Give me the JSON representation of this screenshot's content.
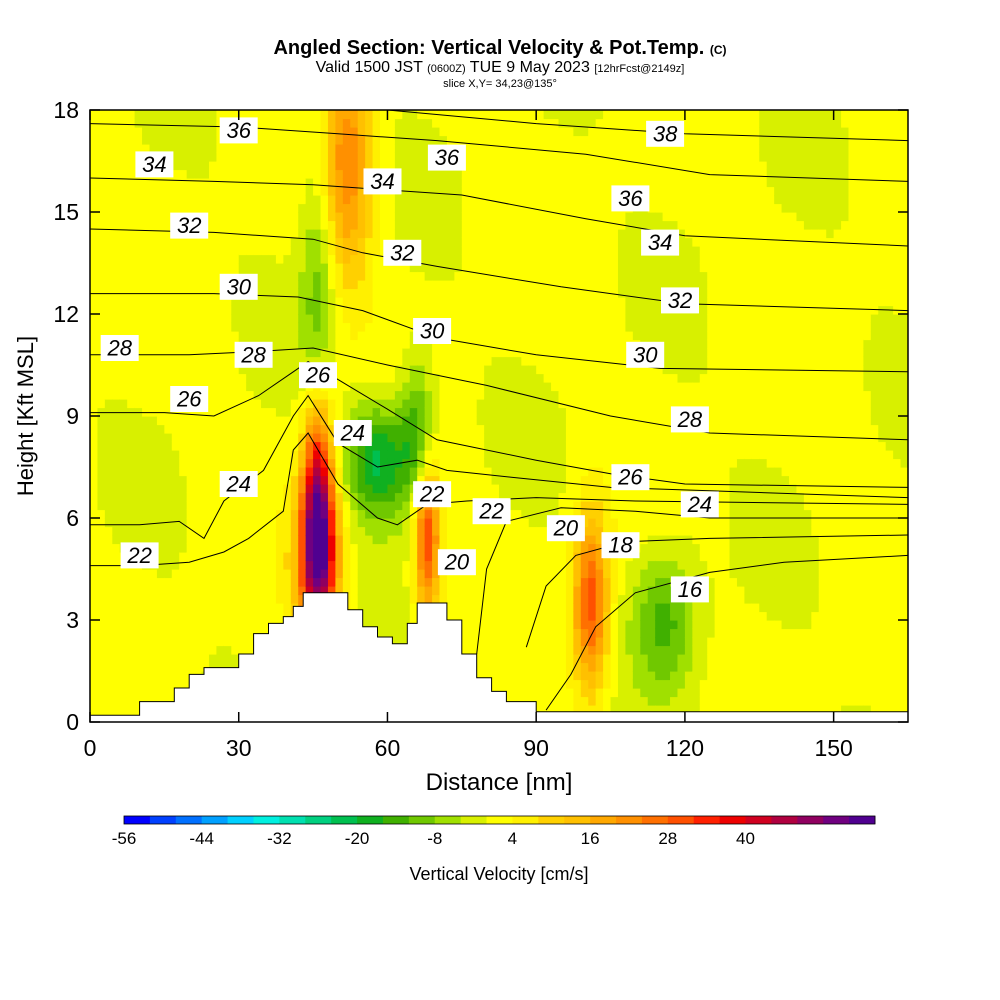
{
  "header": {
    "title": "Angled Section: Vertical Velocity & Pot.Temp.",
    "title_mark": "(C)",
    "valid_main": "Valid 1500 JST",
    "valid_utc": "(0600Z)",
    "valid_date": "TUE 9 May 2023",
    "forecast": "[12hrFcst@2149z]",
    "slice": "slice X,Y= 34,23@135°"
  },
  "chart_data": {
    "type": "heatmap",
    "xlabel": "Distance [nm]",
    "ylabel": "Height [Kft MSL]",
    "xlim": [
      0,
      165
    ],
    "ylim": [
      0,
      18
    ],
    "x_ticks": [
      0,
      30,
      60,
      90,
      120,
      150
    ],
    "y_ticks": [
      0,
      3,
      6,
      9,
      12,
      15,
      18
    ],
    "colorbar": {
      "label": "Vertical Velocity [cm/s]",
      "range": [
        -56,
        52
      ],
      "step": 4,
      "tick_labels": [
        -56,
        -44,
        -32,
        -20,
        -8,
        4,
        16,
        28,
        40
      ],
      "colors": [
        "#0000ff",
        "#0040ff",
        "#0070ff",
        "#00a0ff",
        "#00d0ff",
        "#00f0e0",
        "#00e0b0",
        "#00d080",
        "#00c050",
        "#10b020",
        "#40b000",
        "#70c800",
        "#a0e000",
        "#d8f000",
        "#ffff00",
        "#fff000",
        "#ffd000",
        "#ffc000",
        "#ffa800",
        "#ff9000",
        "#ff7000",
        "#ff5000",
        "#ff2000",
        "#ee0000",
        "#d00020",
        "#b00040",
        "#900060",
        "#700080",
        "#500090"
      ]
    },
    "terrain": [
      [
        0,
        0.2
      ],
      [
        10,
        0.2
      ],
      [
        10,
        0.6
      ],
      [
        17,
        0.6
      ],
      [
        17,
        1.0
      ],
      [
        20,
        1.0
      ],
      [
        20,
        1.4
      ],
      [
        23,
        1.4
      ],
      [
        23,
        1.6
      ],
      [
        30,
        1.6
      ],
      [
        30,
        2.0
      ],
      [
        33,
        2.0
      ],
      [
        33,
        2.6
      ],
      [
        36,
        2.6
      ],
      [
        36,
        2.9
      ],
      [
        39,
        2.9
      ],
      [
        39,
        3.1
      ],
      [
        41,
        3.1
      ],
      [
        41,
        3.4
      ],
      [
        43,
        3.4
      ],
      [
        43,
        3.8
      ],
      [
        52,
        3.8
      ],
      [
        52,
        3.3
      ],
      [
        55,
        3.3
      ],
      [
        55,
        2.8
      ],
      [
        58,
        2.8
      ],
      [
        58,
        2.5
      ],
      [
        61,
        2.5
      ],
      [
        61,
        2.3
      ],
      [
        64,
        2.3
      ],
      [
        64,
        2.9
      ],
      [
        66,
        2.9
      ],
      [
        66,
        3.5
      ],
      [
        72,
        3.5
      ],
      [
        72,
        3.0
      ],
      [
        75,
        3.0
      ],
      [
        75,
        2.0
      ],
      [
        78,
        2.0
      ],
      [
        78,
        1.3
      ],
      [
        81,
        1.3
      ],
      [
        81,
        0.9
      ],
      [
        84,
        0.9
      ],
      [
        84,
        0.6
      ],
      [
        90,
        0.6
      ],
      [
        90,
        0.3
      ],
      [
        165,
        0.3
      ]
    ],
    "theta_lines": [
      {
        "level": 16,
        "points": [
          [
            92,
            0.35
          ],
          [
            97,
            1.4
          ],
          [
            102,
            2.8
          ],
          [
            110,
            3.8
          ],
          [
            125,
            4.4
          ],
          [
            140,
            4.7
          ],
          [
            165,
            4.9
          ]
        ]
      },
      {
        "level": 18,
        "points": [
          [
            88,
            2.2
          ],
          [
            92,
            4.0
          ],
          [
            98,
            4.9
          ],
          [
            108,
            5.3
          ],
          [
            125,
            5.4
          ],
          [
            165,
            5.5
          ]
        ]
      },
      {
        "level": 20,
        "points": [
          [
            78,
            2.0
          ],
          [
            80,
            4.5
          ],
          [
            84,
            5.9
          ],
          [
            95,
            6.3
          ],
          [
            110,
            6.2
          ],
          [
            125,
            6.0
          ],
          [
            165,
            6.0
          ]
        ]
      },
      {
        "level": 22,
        "points": [
          [
            0,
            4.6
          ],
          [
            10,
            4.6
          ],
          [
            20,
            4.7
          ],
          [
            27,
            5.0
          ],
          [
            32,
            5.4
          ],
          [
            39,
            6.2
          ],
          [
            41,
            8.0
          ],
          [
            44,
            8.5
          ],
          [
            50,
            7.0
          ],
          [
            58,
            6.0
          ],
          [
            62,
            5.8
          ],
          [
            68,
            6.4
          ],
          [
            76,
            6.5
          ],
          [
            90,
            6.6
          ],
          [
            110,
            6.5
          ],
          [
            165,
            6.4
          ]
        ]
      },
      {
        "level": 24,
        "points": [
          [
            0,
            5.8
          ],
          [
            10,
            5.8
          ],
          [
            18,
            5.9
          ],
          [
            23,
            5.4
          ],
          [
            27,
            6.5
          ],
          [
            35,
            7.4
          ],
          [
            41,
            9.0
          ],
          [
            44,
            9.6
          ],
          [
            50,
            8.2
          ],
          [
            58,
            7.5
          ],
          [
            66,
            7.7
          ],
          [
            72,
            7.4
          ],
          [
            85,
            7.2
          ],
          [
            105,
            6.9
          ],
          [
            125,
            6.8
          ],
          [
            165,
            6.6
          ]
        ]
      },
      {
        "level": 26,
        "points": [
          [
            0,
            9.1
          ],
          [
            15,
            9.1
          ],
          [
            25,
            9.0
          ],
          [
            34,
            9.6
          ],
          [
            41,
            10.3
          ],
          [
            44,
            10.6
          ],
          [
            52,
            9.9
          ],
          [
            60,
            9.2
          ],
          [
            70,
            8.3
          ],
          [
            90,
            7.7
          ],
          [
            105,
            7.3
          ],
          [
            120,
            7.0
          ],
          [
            165,
            6.9
          ]
        ]
      },
      {
        "level": 28,
        "points": [
          [
            0,
            10.8
          ],
          [
            20,
            10.8
          ],
          [
            34,
            10.9
          ],
          [
            45,
            11.0
          ],
          [
            60,
            10.5
          ],
          [
            80,
            9.9
          ],
          [
            105,
            9.0
          ],
          [
            125,
            8.5
          ],
          [
            165,
            8.3
          ]
        ]
      },
      {
        "level": 30,
        "points": [
          [
            0,
            12.6
          ],
          [
            25,
            12.6
          ],
          [
            42,
            12.5
          ],
          [
            55,
            12.1
          ],
          [
            70,
            11.3
          ],
          [
            90,
            10.8
          ],
          [
            115,
            10.4
          ],
          [
            165,
            10.3
          ]
        ]
      },
      {
        "level": 32,
        "points": [
          [
            0,
            14.5
          ],
          [
            25,
            14.4
          ],
          [
            45,
            14.2
          ],
          [
            55,
            13.8
          ],
          [
            70,
            13.4
          ],
          [
            95,
            12.8
          ],
          [
            120,
            12.3
          ],
          [
            165,
            12.1
          ]
        ]
      },
      {
        "level": 34,
        "points": [
          [
            0,
            16.0
          ],
          [
            25,
            15.9
          ],
          [
            45,
            15.8
          ],
          [
            55,
            15.7
          ],
          [
            75,
            15.5
          ],
          [
            100,
            14.8
          ],
          [
            120,
            14.3
          ],
          [
            165,
            14.0
          ]
        ]
      },
      {
        "level": 36,
        "points": [
          [
            0,
            17.6
          ],
          [
            30,
            17.5
          ],
          [
            50,
            17.3
          ],
          [
            70,
            17.1
          ],
          [
            100,
            16.7
          ],
          [
            125,
            16.1
          ],
          [
            165,
            15.9
          ]
        ]
      },
      {
        "level": 38,
        "points": [
          [
            60,
            18.0
          ],
          [
            90,
            17.6
          ],
          [
            120,
            17.3
          ],
          [
            165,
            17.1
          ]
        ]
      }
    ],
    "theta_labels": [
      {
        "text": "38",
        "x": 116,
        "y": 17.3
      },
      {
        "text": "36",
        "x": 30,
        "y": 17.4
      },
      {
        "text": "36",
        "x": 72,
        "y": 16.6
      },
      {
        "text": "36",
        "x": 109,
        "y": 15.4
      },
      {
        "text": "34",
        "x": 13,
        "y": 16.4
      },
      {
        "text": "34",
        "x": 59,
        "y": 15.9
      },
      {
        "text": "34",
        "x": 115,
        "y": 14.1
      },
      {
        "text": "32",
        "x": 20,
        "y": 14.6
      },
      {
        "text": "32",
        "x": 63,
        "y": 13.8
      },
      {
        "text": "32",
        "x": 119,
        "y": 12.4
      },
      {
        "text": "30",
        "x": 30,
        "y": 12.8
      },
      {
        "text": "30",
        "x": 69,
        "y": 11.5
      },
      {
        "text": "30",
        "x": 112,
        "y": 10.8
      },
      {
        "text": "28",
        "x": 6,
        "y": 11.0
      },
      {
        "text": "28",
        "x": 33,
        "y": 10.8
      },
      {
        "text": "28",
        "x": 121,
        "y": 8.9
      },
      {
        "text": "26",
        "x": 20,
        "y": 9.5
      },
      {
        "text": "26",
        "x": 46,
        "y": 10.2
      },
      {
        "text": "26",
        "x": 109,
        "y": 7.2
      },
      {
        "text": "24",
        "x": 53,
        "y": 8.5
      },
      {
        "text": "24",
        "x": 30,
        "y": 7.0
      },
      {
        "text": "24",
        "x": 123,
        "y": 6.4
      },
      {
        "text": "22",
        "x": 10,
        "y": 4.9
      },
      {
        "text": "22",
        "x": 69,
        "y": 6.7
      },
      {
        "text": "22",
        "x": 81,
        "y": 6.2
      },
      {
        "text": "20",
        "x": 96,
        "y": 5.7
      },
      {
        "text": "20",
        "x": 74,
        "y": 4.7
      },
      {
        "text": "18",
        "x": 107,
        "y": 5.2
      },
      {
        "text": "16",
        "x": 121,
        "y": 3.9
      }
    ],
    "velocity_features": [
      {
        "type": "updraft",
        "x": 46,
        "y": 6.5,
        "peak": 48,
        "sx": 2.2,
        "sy": 2.2
      },
      {
        "type": "updraft",
        "x": 46,
        "y": 4.6,
        "peak": 30,
        "sx": 3.2,
        "sy": 1.6
      },
      {
        "type": "updraft",
        "x": 68,
        "y": 5.4,
        "peak": 32,
        "sx": 1.8,
        "sy": 1.6
      },
      {
        "type": "updraft",
        "x": 101,
        "y": 3.5,
        "peak": 30,
        "sx": 2.5,
        "sy": 1.8
      },
      {
        "type": "updraft",
        "x": 52,
        "y": 16.5,
        "peak": 22,
        "sx": 3.5,
        "sy": 2.5
      },
      {
        "type": "downdraft",
        "x": 58,
        "y": 7.7,
        "peak": -22,
        "sx": 4.5,
        "sy": 1.2
      },
      {
        "type": "downdraft",
        "x": 66,
        "y": 8.5,
        "peak": -16,
        "sx": 2.5,
        "sy": 1.5
      },
      {
        "type": "downdraft",
        "x": 46,
        "y": 12.0,
        "peak": -12,
        "sx": 2.5,
        "sy": 3.5
      },
      {
        "type": "downdraft",
        "x": 116,
        "y": 3.0,
        "peak": -14,
        "sx": 4.5,
        "sy": 1.5
      }
    ]
  }
}
